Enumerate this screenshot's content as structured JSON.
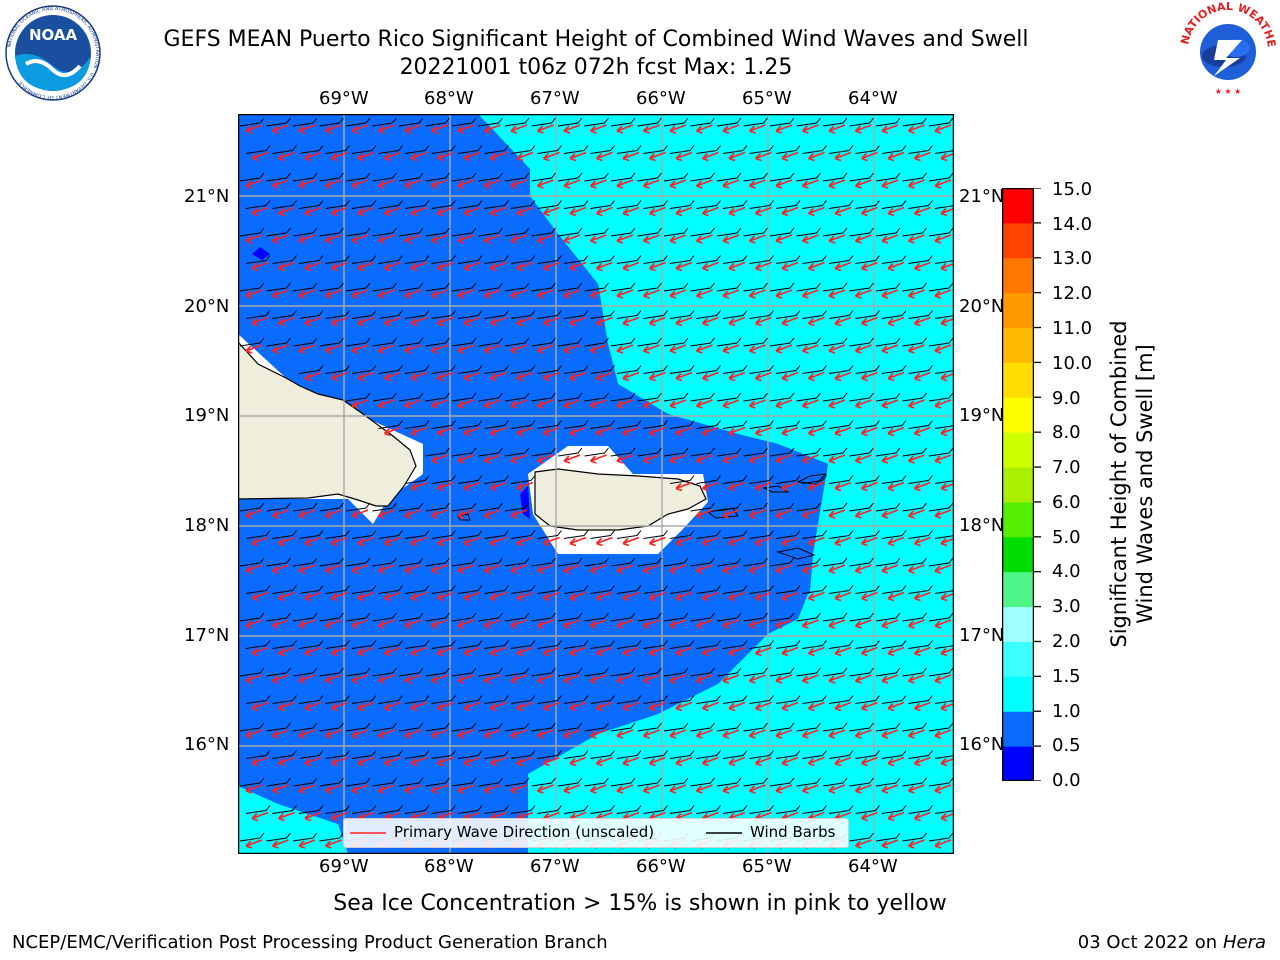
{
  "header": {
    "title_line1": "GEFS MEAN Puerto Rico Significant Height of Combined Wind Waves and Swell",
    "title_line2": "20221001 t06z 072h fcst   Max: 1.25"
  },
  "logos": {
    "left": "NOAA",
    "left_ring": "NATIONAL OCEANIC AND ATMOSPHERIC ADMINISTRATION · U.S. DEPARTMENT OF COMMERCE",
    "right_ring": "NATIONAL WEATHER SERVICE"
  },
  "map": {
    "lon_labels": [
      "69°W",
      "68°W",
      "67°W",
      "66°W",
      "65°W",
      "64°W"
    ],
    "lat_labels": [
      "21°N",
      "20°N",
      "19°N",
      "18°N",
      "17°N",
      "16°N"
    ],
    "extent": {
      "lon_min": -70.0,
      "lon_max": -63.25,
      "lat_min": 15.0,
      "lat_max": 21.75
    }
  },
  "legend": {
    "wave_direction": "Primary Wave Direction (unscaled)",
    "wind_barbs": "Wind Barbs"
  },
  "colorbar": {
    "label_line1": "Significant Height of Combined",
    "label_line2": "Wind Waves and Swell [m]",
    "ticks": [
      "0.0",
      "0.5",
      "1.0",
      "1.5",
      "2.0",
      "3.0",
      "4.0",
      "5.0",
      "6.0",
      "7.0",
      "8.0",
      "9.0",
      "10.0",
      "11.0",
      "12.0",
      "13.0",
      "14.0",
      "15.0"
    ],
    "colors": [
      "#0000ff",
      "#0a6cff",
      "#00ffff",
      "#3cffff",
      "#a0ffff",
      "#50f58a",
      "#00dd00",
      "#55ee00",
      "#aaee00",
      "#ccff00",
      "#ffff00",
      "#ffdd00",
      "#ffbb00",
      "#ff9900",
      "#ff7700",
      "#ff4400",
      "#ff0000"
    ]
  },
  "colors": {
    "sea_low": "#0a6cff",
    "sea_high": "#00ffff",
    "land": "#efeddc",
    "arrows": "#ff2020"
  },
  "note": "Sea Ice Concentration > 15% is shown in pink to yellow",
  "footer": {
    "left": "NCEP/EMC/Verification Post Processing Product Generation Branch",
    "date": "03 Oct 2022 on ",
    "machine": "Hera"
  }
}
